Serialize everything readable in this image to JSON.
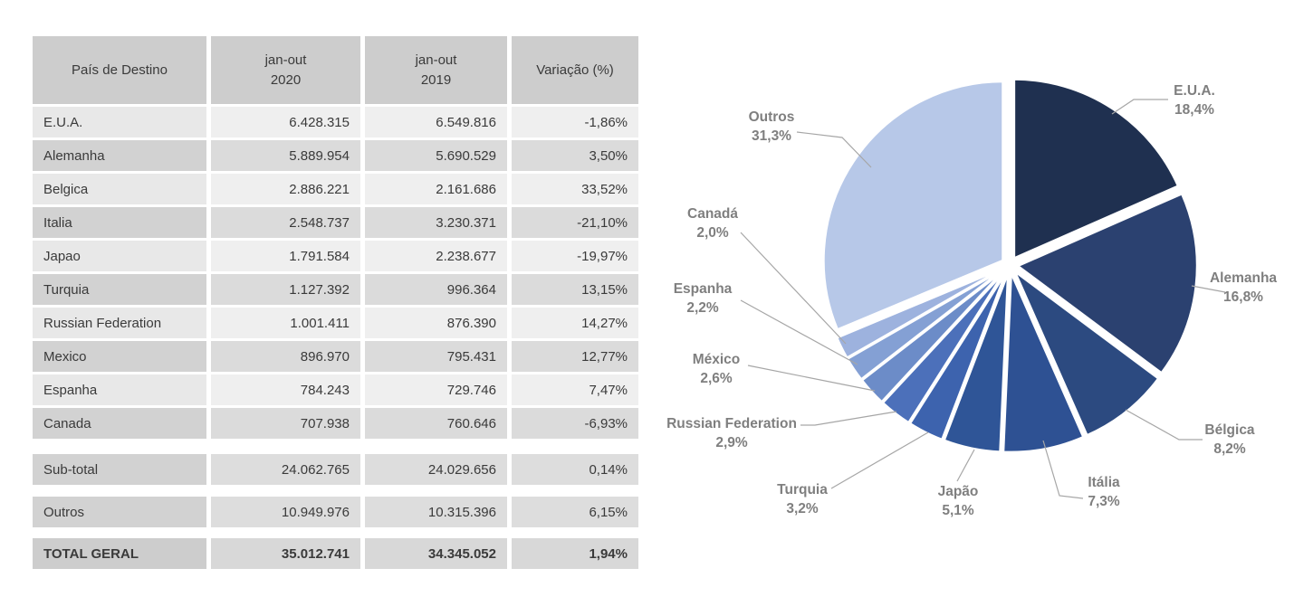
{
  "table": {
    "headers": [
      {
        "lines": [
          "País de Destino"
        ]
      },
      {
        "lines": [
          "jan-out",
          "2020"
        ]
      },
      {
        "lines": [
          "jan-out",
          "2019"
        ]
      },
      {
        "lines": [
          "Variação (%)"
        ]
      }
    ],
    "rows": [
      {
        "country": "E.U.A.",
        "jan_out_2020": "6.428.315",
        "jan_out_2019": "6.549.816",
        "variation": "-1,86%"
      },
      {
        "country": "Alemanha",
        "jan_out_2020": "5.889.954",
        "jan_out_2019": "5.690.529",
        "variation": "3,50%"
      },
      {
        "country": "Belgica",
        "jan_out_2020": "2.886.221",
        "jan_out_2019": "2.161.686",
        "variation": "33,52%"
      },
      {
        "country": "Italia",
        "jan_out_2020": "2.548.737",
        "jan_out_2019": "3.230.371",
        "variation": "-21,10%"
      },
      {
        "country": "Japao",
        "jan_out_2020": "1.791.584",
        "jan_out_2019": "2.238.677",
        "variation": "-19,97%"
      },
      {
        "country": "Turquia",
        "jan_out_2020": "1.127.392",
        "jan_out_2019": "996.364",
        "variation": "13,15%"
      },
      {
        "country": "Russian Federation",
        "jan_out_2020": "1.001.411",
        "jan_out_2019": "876.390",
        "variation": "14,27%"
      },
      {
        "country": "Mexico",
        "jan_out_2020": "896.970",
        "jan_out_2019": "795.431",
        "variation": "12,77%"
      },
      {
        "country": "Espanha",
        "jan_out_2020": "784.243",
        "jan_out_2019": "729.746",
        "variation": "7,47%"
      },
      {
        "country": "Canada",
        "jan_out_2020": "707.938",
        "jan_out_2019": "760.646",
        "variation": "-6,93%"
      }
    ],
    "summary_rows": [
      {
        "country": "Sub-total",
        "jan_out_2020": "24.062.765",
        "jan_out_2019": "24.029.656",
        "variation": "0,14%"
      },
      {
        "country": "Outros",
        "jan_out_2020": "10.949.976",
        "jan_out_2019": "10.315.396",
        "variation": "6,15%"
      }
    ],
    "total_row": {
      "country": "TOTAL GERAL",
      "jan_out_2020": "35.012.741",
      "jan_out_2019": "34.345.052",
      "variation": "1,94%"
    }
  },
  "chart_data": {
    "type": "pie",
    "style": "exploded",
    "start_angle_deg": 0,
    "direction": "clockwise",
    "label_color": "#7F7F7F",
    "leader_line_color": "#A6A6A6",
    "slices": [
      {
        "label": "E.U.A.",
        "value": 18.4,
        "value_label": "18,4%",
        "color": "#1F3050"
      },
      {
        "label": "Alemanha",
        "value": 16.8,
        "value_label": "16,8%",
        "color": "#2B4170"
      },
      {
        "label": "Bélgica",
        "value": 8.2,
        "value_label": "8,2%",
        "color": "#2C4A80"
      },
      {
        "label": "Itália",
        "value": 7.3,
        "value_label": "7,3%",
        "color": "#2E5193"
      },
      {
        "label": "Japão",
        "value": 5.1,
        "value_label": "5,1%",
        "color": "#2F5597"
      },
      {
        "label": "Turquia",
        "value": 3.2,
        "value_label": "3,2%",
        "color": "#3D63AE"
      },
      {
        "label": "Russian Federation",
        "value": 2.9,
        "value_label": "2,9%",
        "color": "#4C70BA"
      },
      {
        "label": "México",
        "value": 2.6,
        "value_label": "2,6%",
        "color": "#6C8CC8"
      },
      {
        "label": "Espanha",
        "value": 2.2,
        "value_label": "2,2%",
        "color": "#84A0D4"
      },
      {
        "label": "Canadá",
        "value": 2.0,
        "value_label": "2,0%",
        "color": "#9DB2DE"
      },
      {
        "label": "Outros",
        "value": 31.3,
        "value_label": "31,3%",
        "color": "#B7C8E8"
      }
    ]
  }
}
